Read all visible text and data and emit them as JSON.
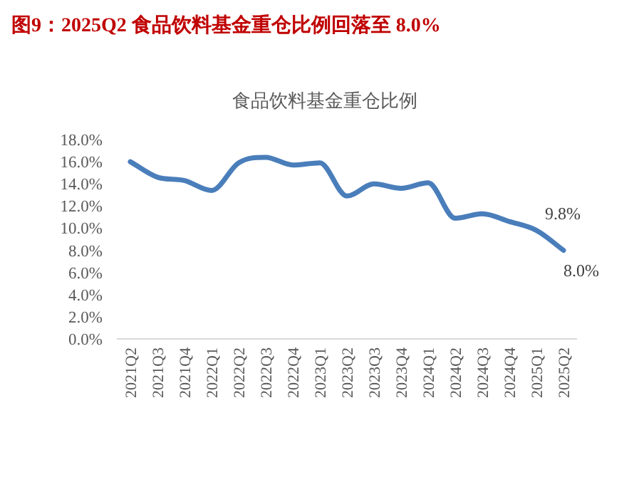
{
  "chart_data": {
    "type": "line",
    "title": "图9：2025Q2 食品饮料基金重仓比例回落至 8.0%",
    "subtitle": "食品饮料基金重仓比例",
    "categories": [
      "2021Q2",
      "2021Q3",
      "2021Q4",
      "2022Q1",
      "2022Q2",
      "2022Q3",
      "2022Q4",
      "2023Q1",
      "2023Q2",
      "2023Q3",
      "2023Q4",
      "2024Q1",
      "2024Q2",
      "2024Q3",
      "2024Q4",
      "2025Q1",
      "2025Q2"
    ],
    "series": [
      {
        "color": "#4a7ebb",
        "values": [
          16.0,
          14.6,
          14.3,
          13.4,
          15.9,
          16.4,
          15.7,
          15.9,
          12.9,
          14.0,
          13.6,
          14.1,
          10.9,
          11.3,
          10.6,
          9.8,
          8.0
        ],
        "value_labels": [
          null,
          null,
          null,
          null,
          null,
          null,
          null,
          null,
          null,
          null,
          null,
          null,
          null,
          null,
          null,
          "9.8%",
          "8.0%"
        ]
      }
    ],
    "ylim": [
      0,
      18
    ],
    "yticks": [
      {
        "value": 0,
        "label": "0.0%"
      },
      {
        "value": 2,
        "label": "2.0%"
      },
      {
        "value": 4,
        "label": "4.0%"
      },
      {
        "value": 6,
        "label": "6.0%"
      },
      {
        "value": 8,
        "label": "8.0%"
      },
      {
        "value": 10,
        "label": "10.0%"
      },
      {
        "value": 12,
        "label": "12.0%"
      },
      {
        "value": 14,
        "label": "14.0%"
      },
      {
        "value": 16,
        "label": "16.0%"
      },
      {
        "value": 18,
        "label": "18.0%"
      }
    ],
    "grid": false,
    "marker": "none",
    "line_style": "solid"
  }
}
